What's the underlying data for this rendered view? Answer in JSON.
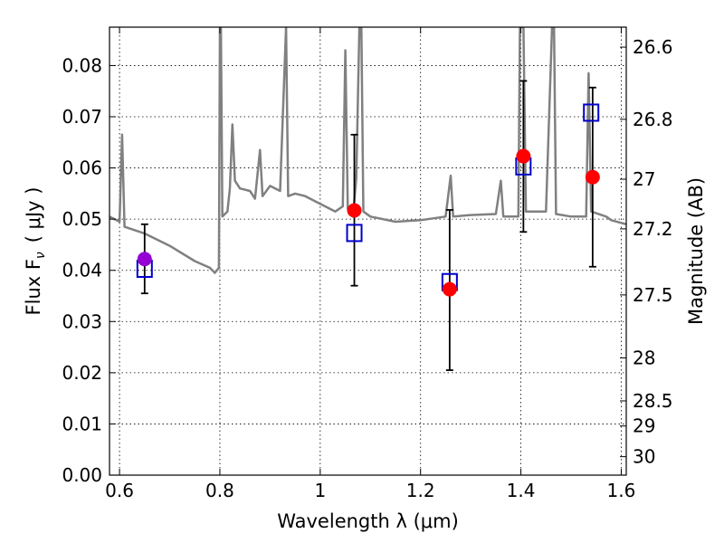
{
  "chart_data": {
    "type": "scatter",
    "xlabel": "Wavelength  λ (μm)",
    "ylabel": "Flux  F",
    "ylabel_sub": "ν",
    "ylabel_unit": "( μJy )",
    "ylabel_right": "Magnitude (AB)",
    "xlim": [
      0.58,
      1.61
    ],
    "ylim": [
      0.0,
      0.0875
    ],
    "grid": true,
    "x_ticks": [
      0.6,
      0.8,
      1.0,
      1.2,
      1.4,
      1.6
    ],
    "x_tick_labels": [
      "0.6",
      "0.8",
      "1",
      "1.2",
      "1.4",
      "1.6"
    ],
    "y_ticks": [
      0.0,
      0.01,
      0.02,
      0.03,
      0.04,
      0.05,
      0.06,
      0.07,
      0.08
    ],
    "y_tick_labels": [
      "0.00",
      "0.01",
      "0.02",
      "0.03",
      "0.04",
      "0.05",
      "0.06",
      "0.07",
      "0.08"
    ],
    "right_ticks": [
      {
        "label": "26.6",
        "flux": 0.0836
      },
      {
        "label": "26.8",
        "flux": 0.0695
      },
      {
        "label": "27",
        "flux": 0.0578
      },
      {
        "label": "27.2",
        "flux": 0.0481
      },
      {
        "label": "27.5",
        "flux": 0.0352
      },
      {
        "label": "28",
        "flux": 0.0229
      },
      {
        "label": "28.5",
        "flux": 0.0145
      },
      {
        "label": "29",
        "flux": 0.0096
      },
      {
        "label": "30",
        "flux": 0.0036
      }
    ],
    "series": [
      {
        "kind": "model-spectrum",
        "color": "#808080",
        "points": [
          [
            0.58,
            0.0505
          ],
          [
            0.6,
            0.0495
          ],
          [
            0.605,
            0.0665
          ],
          [
            0.61,
            0.0485
          ],
          [
            0.65,
            0.0472
          ],
          [
            0.7,
            0.0448
          ],
          [
            0.75,
            0.0418
          ],
          [
            0.78,
            0.0405
          ],
          [
            0.79,
            0.0395
          ],
          [
            0.798,
            0.0405
          ],
          [
            0.8,
            0.0875
          ],
          [
            0.802,
            0.0875
          ],
          [
            0.805,
            0.0505
          ],
          [
            0.815,
            0.0515
          ],
          [
            0.82,
            0.056
          ],
          [
            0.825,
            0.0685
          ],
          [
            0.83,
            0.0575
          ],
          [
            0.84,
            0.056
          ],
          [
            0.86,
            0.0555
          ],
          [
            0.87,
            0.054
          ],
          [
            0.88,
            0.0635
          ],
          [
            0.885,
            0.0545
          ],
          [
            0.9,
            0.0565
          ],
          [
            0.92,
            0.0555
          ],
          [
            0.932,
            0.0875
          ],
          [
            0.936,
            0.0545
          ],
          [
            0.95,
            0.055
          ],
          [
            0.97,
            0.0545
          ],
          [
            1.0,
            0.053
          ],
          [
            1.03,
            0.0515
          ],
          [
            1.045,
            0.0525
          ],
          [
            1.05,
            0.083
          ],
          [
            1.055,
            0.052
          ],
          [
            1.065,
            0.0505
          ],
          [
            1.072,
            0.058
          ],
          [
            1.078,
            0.0875
          ],
          [
            1.082,
            0.0875
          ],
          [
            1.086,
            0.0515
          ],
          [
            1.1,
            0.0505
          ],
          [
            1.15,
            0.0495
          ],
          [
            1.2,
            0.0498
          ],
          [
            1.25,
            0.0505
          ],
          [
            1.26,
            0.0585
          ],
          [
            1.265,
            0.0505
          ],
          [
            1.3,
            0.0508
          ],
          [
            1.35,
            0.051
          ],
          [
            1.36,
            0.0575
          ],
          [
            1.365,
            0.0505
          ],
          [
            1.395,
            0.0505
          ],
          [
            1.398,
            0.0875
          ],
          [
            1.405,
            0.0875
          ],
          [
            1.41,
            0.0515
          ],
          [
            1.45,
            0.0515
          ],
          [
            1.462,
            0.0875
          ],
          [
            1.466,
            0.0875
          ],
          [
            1.47,
            0.051
          ],
          [
            1.5,
            0.0505
          ],
          [
            1.53,
            0.0505
          ],
          [
            1.535,
            0.0785
          ],
          [
            1.54,
            0.0515
          ],
          [
            1.57,
            0.0505
          ],
          [
            1.58,
            0.0498
          ],
          [
            1.61,
            0.049
          ]
        ]
      },
      {
        "kind": "observed-flux",
        "color": "#ff0000",
        "marker": "circle",
        "points": [
          {
            "x": 1.068,
            "y": 0.0517,
            "yerr_low": 0.037,
            "yerr_high": 0.0665
          },
          {
            "x": 1.258,
            "y": 0.0363,
            "yerr_low": 0.0205,
            "yerr_high": 0.0518
          },
          {
            "x": 1.405,
            "y": 0.0623,
            "yerr_low": 0.0475,
            "yerr_high": 0.077
          },
          {
            "x": 1.543,
            "y": 0.0582,
            "yerr_low": 0.0407,
            "yerr_high": 0.0757
          }
        ]
      },
      {
        "kind": "observed-flux-visible",
        "color": "#9400d3",
        "marker": "circle",
        "points": [
          {
            "x": 0.65,
            "y": 0.0422,
            "yerr_low": 0.0355,
            "yerr_high": 0.049
          }
        ]
      },
      {
        "kind": "model-flux",
        "color": "#0000cc",
        "marker": "open-square",
        "points": [
          {
            "x": 0.65,
            "y": 0.0403
          },
          {
            "x": 1.068,
            "y": 0.0473
          },
          {
            "x": 1.258,
            "y": 0.0377
          },
          {
            "x": 1.405,
            "y": 0.0603
          },
          {
            "x": 1.54,
            "y": 0.0708
          }
        ]
      }
    ]
  }
}
